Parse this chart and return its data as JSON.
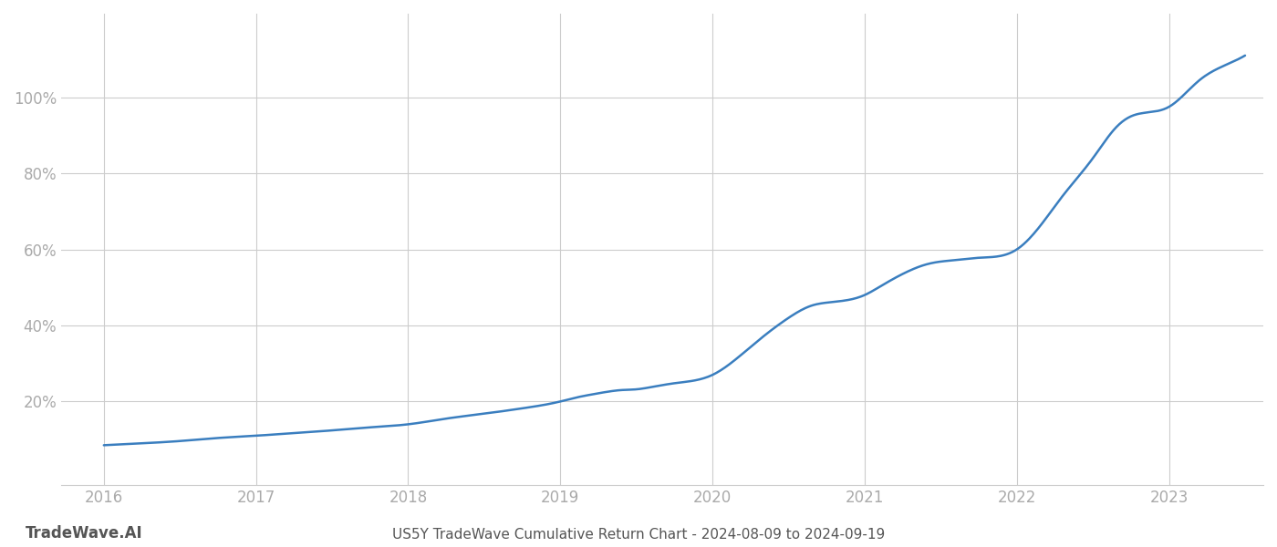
{
  "title": "US5Y TradeWave Cumulative Return Chart - 2024-08-09 to 2024-09-19",
  "watermark": "TradeWave.AI",
  "line_color": "#3a7ebf",
  "background_color": "#ffffff",
  "grid_color": "#cccccc",
  "x_years": [
    2016,
    2017,
    2018,
    2019,
    2020,
    2021,
    2022,
    2023
  ],
  "y_ticks": [
    0.2,
    0.4,
    0.6,
    0.8,
    1.0
  ],
  "y_tick_labels": [
    "20%",
    "40%",
    "60%",
    "80%",
    "100%"
  ],
  "data_x": [
    2016.0,
    2016.25,
    2016.5,
    2016.75,
    2017.0,
    2017.25,
    2017.5,
    2017.75,
    2018.0,
    2018.25,
    2018.5,
    2018.75,
    2019.0,
    2019.1,
    2019.2,
    2019.3,
    2019.4,
    2019.5,
    2019.6,
    2019.75,
    2020.0,
    2020.15,
    2020.3,
    2020.5,
    2020.65,
    2020.75,
    2021.0,
    2021.1,
    2021.2,
    2021.3,
    2021.4,
    2021.5,
    2021.6,
    2021.75,
    2022.0,
    2022.15,
    2022.3,
    2022.5,
    2022.65,
    2022.75,
    2023.0,
    2023.2,
    2023.4,
    2023.5
  ],
  "data_y": [
    0.085,
    0.09,
    0.096,
    0.104,
    0.11,
    0.117,
    0.124,
    0.132,
    0.14,
    0.155,
    0.168,
    0.182,
    0.2,
    0.21,
    0.218,
    0.225,
    0.23,
    0.232,
    0.238,
    0.248,
    0.27,
    0.31,
    0.36,
    0.42,
    0.452,
    0.46,
    0.48,
    0.502,
    0.525,
    0.545,
    0.56,
    0.568,
    0.572,
    0.578,
    0.6,
    0.66,
    0.74,
    0.84,
    0.92,
    0.95,
    0.975,
    1.045,
    1.09,
    1.11
  ],
  "xlim": [
    2015.72,
    2023.62
  ],
  "ylim": [
    -0.02,
    1.22
  ],
  "title_fontsize": 11,
  "tick_fontsize": 12,
  "watermark_fontsize": 12,
  "line_width": 1.8
}
